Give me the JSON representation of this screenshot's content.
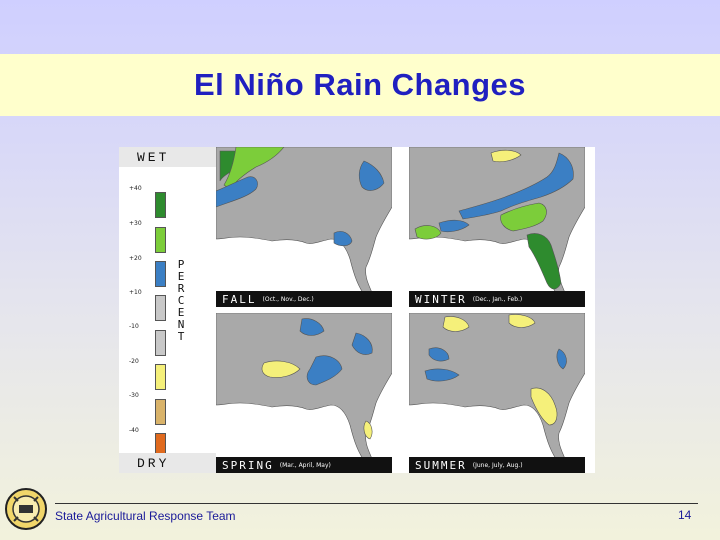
{
  "slide": {
    "title": "El Niño Rain Changes",
    "footer_text": "State Agricultural Response Team",
    "page_number": "14"
  },
  "legend": {
    "top_label": "WET",
    "bottom_label": "DRY",
    "axis_letters": [
      "P",
      "E",
      "R",
      "C",
      "E",
      "N",
      "T"
    ],
    "ticks": [
      "+40",
      "+30",
      "+20",
      "+10",
      "-10",
      "-20",
      "-30",
      "-40"
    ],
    "swatches": [
      {
        "color": "#2e8b2e"
      },
      {
        "color": "#7ccd3a"
      },
      {
        "color": "#3b7fc4"
      },
      {
        "color": "#c8c8c8"
      },
      {
        "color": "#c8c8c8"
      },
      {
        "color": "#f5f07a"
      },
      {
        "color": "#d9b36a"
      },
      {
        "color": "#e06a1e"
      }
    ]
  },
  "panels": [
    {
      "season": "FALL",
      "months": "(Oct., Nov., Dec.)"
    },
    {
      "season": "WINTER",
      "months": "(Dec., Jan., Feb.)"
    },
    {
      "season": "SPRING",
      "months": "(Mar., April, May)"
    },
    {
      "season": "SUMMER",
      "months": "(June, July, Aug.)"
    }
  ],
  "colors": {
    "title": "#2020c0",
    "title_band": "#ffffcc",
    "land": "#a9a9a9",
    "water": "#ffffff",
    "wet_blue": "#3b7fc4",
    "wet_green_light": "#7ccd3a",
    "wet_green_dark": "#2e8b2e",
    "dry_yellow": "#f5f07a"
  }
}
